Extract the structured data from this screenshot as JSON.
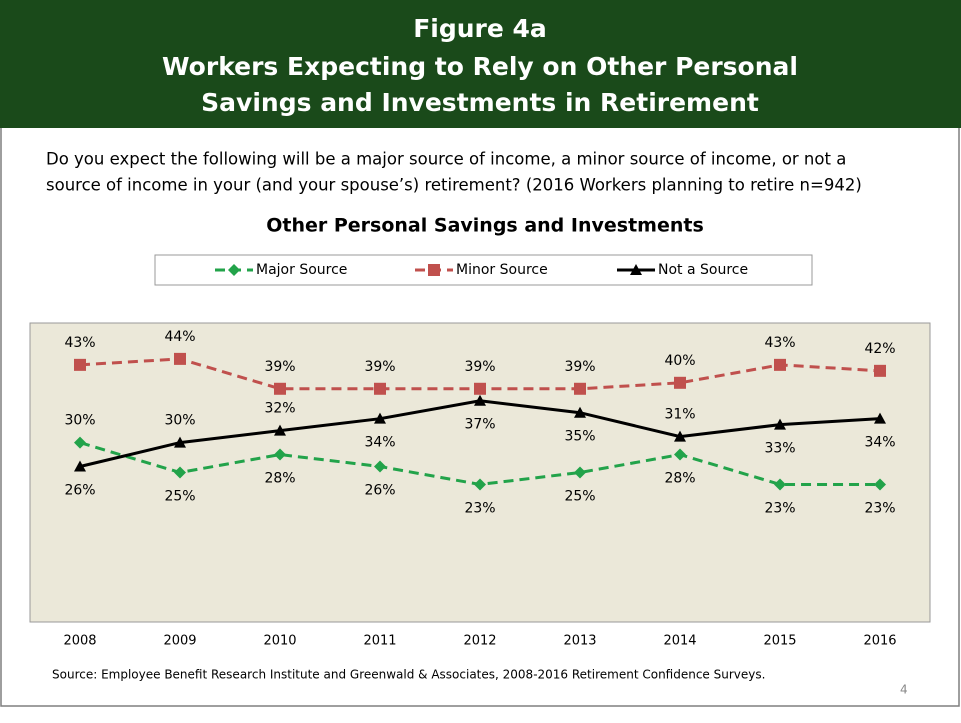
{
  "slide": {
    "heading": [
      "Figure 4a",
      "Workers Expecting to Rely on Other Personal",
      "Savings and Investments in Retirement"
    ],
    "question": [
      "Do you expect the following will be a major source of income, a minor source of income, or not a",
      "source of income in your (and your spouse’s) retirement?  (2016 Workers planning to retire n=942)"
    ],
    "source": "Source:  Employee Benefit Research Institute and Greenwald & Associates, 2008-2016 Retirement Confidence Surveys.",
    "page_number": "4"
  },
  "chart_data": {
    "type": "line",
    "title": "Other Personal Savings and Investments",
    "categories": [
      "2008",
      "2009",
      "2010",
      "2011",
      "2012",
      "2013",
      "2014",
      "2015",
      "2016"
    ],
    "ylim": [
      0,
      50
    ],
    "series": [
      {
        "name": "Major Source",
        "color": "#22a34a",
        "marker": "diamond",
        "dashed": true,
        "values": [
          30,
          25,
          28,
          26,
          23,
          25,
          28,
          23,
          23
        ],
        "value_labels": [
          "30%",
          "25%",
          "28%",
          "26%",
          "23%",
          "25%",
          "28%",
          "23%",
          "23%"
        ]
      },
      {
        "name": "Minor Source",
        "color": "#c0504d",
        "marker": "square",
        "dashed": true,
        "values": [
          43,
          44,
          39,
          39,
          39,
          39,
          40,
          43,
          42
        ],
        "value_labels": [
          "43%",
          "44%",
          "39%",
          "39%",
          "39%",
          "39%",
          "40%",
          "43%",
          "42%"
        ]
      },
      {
        "name": "Not a Source",
        "color": "#000000",
        "marker": "triangle",
        "dashed": false,
        "values": [
          26,
          30,
          32,
          34,
          37,
          35,
          31,
          33,
          34
        ],
        "value_labels": [
          "26%",
          "30%",
          "32%",
          "34%",
          "37%",
          "35%",
          "31%",
          "33%",
          "34%"
        ]
      }
    ]
  }
}
